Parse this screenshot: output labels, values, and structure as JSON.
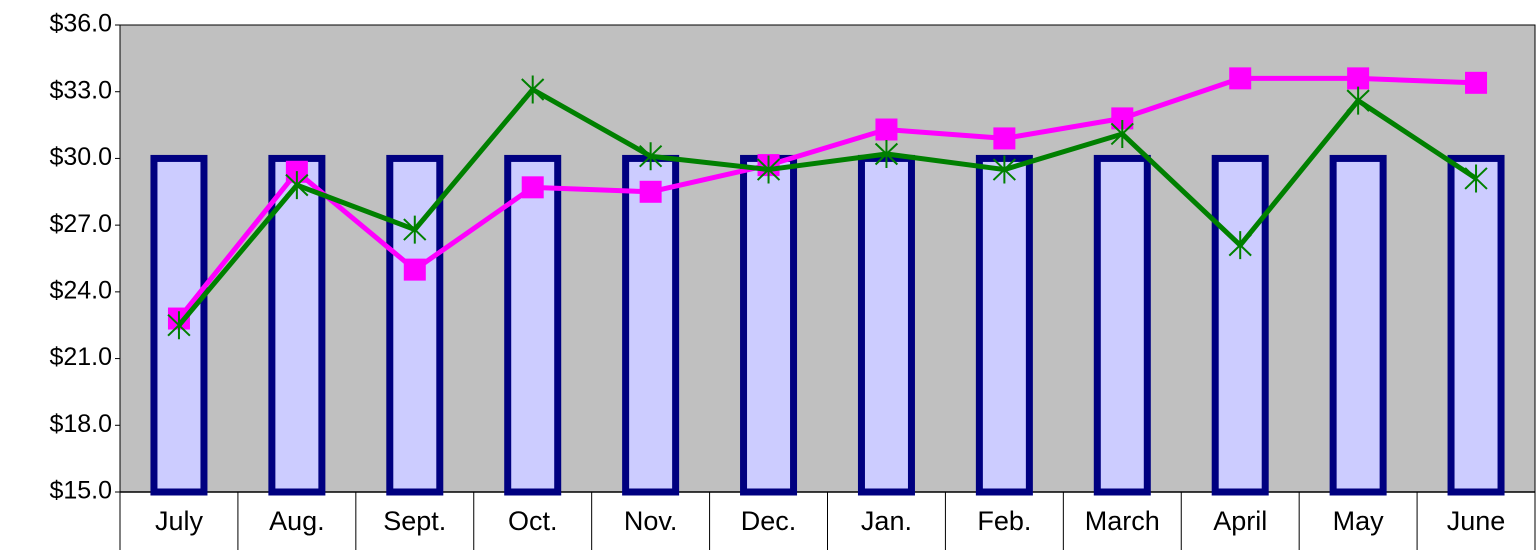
{
  "chart_data": {
    "type": "bar",
    "categories": [
      "July",
      "Aug.",
      "Sept.",
      "Oct.",
      "Nov.",
      "Dec.",
      "Jan.",
      "Feb.",
      "March",
      "April",
      "May",
      "June"
    ],
    "series": [
      {
        "type": "bar",
        "color": "#ccccff",
        "edge_color": "#000080",
        "values": [
          30,
          30,
          30,
          30,
          30,
          30,
          30,
          30,
          30,
          30,
          30,
          30
        ]
      },
      {
        "type": "line",
        "marker": "square",
        "color": "#ff00ff",
        "values": [
          22.8,
          29.4,
          25.0,
          28.7,
          28.5,
          29.7,
          31.3,
          30.9,
          31.8,
          33.6,
          33.6,
          33.4
        ]
      },
      {
        "type": "line",
        "marker": "asterisk",
        "color": "#008000",
        "values": [
          22.5,
          28.8,
          26.8,
          33.1,
          30.1,
          29.5,
          30.2,
          29.5,
          31.1,
          26.1,
          32.6,
          29.1
        ]
      }
    ],
    "ylim": [
      15,
      36
    ],
    "yticks": [
      {
        "value": 15,
        "label": "$15.0"
      },
      {
        "value": 18,
        "label": "$18.0"
      },
      {
        "value": 21,
        "label": "$21.0"
      },
      {
        "value": 24,
        "label": "$24.0"
      },
      {
        "value": 27,
        "label": "$27.0"
      },
      {
        "value": 30,
        "label": "$30.0"
      },
      {
        "value": 33,
        "label": "$33.0"
      },
      {
        "value": 36,
        "label": "$36.0"
      }
    ],
    "plot_background": "#c0c0c0"
  }
}
